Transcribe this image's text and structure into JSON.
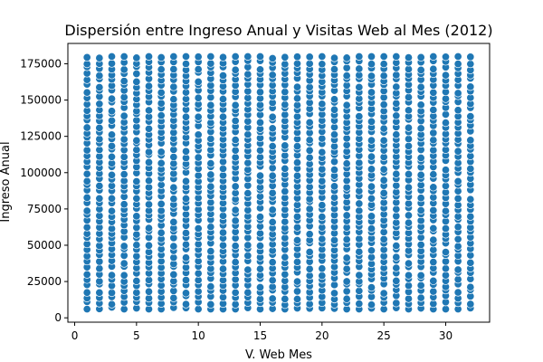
{
  "chart_data": {
    "type": "scatter",
    "title": "Dispersión entre Ingreso Anual y Visitas Web al Mes (2012)",
    "xlabel": "V. Web Mes",
    "ylabel": "Ingreso Anual",
    "xlim": [
      -0.55,
      33.55
    ],
    "ylim": [
      -3000,
      189000
    ],
    "x_ticks": [
      0,
      5,
      10,
      15,
      20,
      25,
      30
    ],
    "x_tick_labels": [
      "0",
      "5",
      "10",
      "15",
      "20",
      "25",
      "30"
    ],
    "y_ticks": [
      0,
      25000,
      50000,
      75000,
      100000,
      125000,
      150000,
      175000
    ],
    "y_tick_labels": [
      "0",
      "25000",
      "50000",
      "75000",
      "100000",
      "125000",
      "150000",
      "175000"
    ],
    "grid": false,
    "legend": "none",
    "point_color": "#1f77b4",
    "point_edge_color": "#ffffff",
    "series": [
      {
        "x": [
          1,
          2,
          3,
          4,
          5,
          6,
          7,
          8,
          9,
          10,
          11,
          12,
          13,
          14,
          15,
          16,
          17,
          18,
          19,
          20,
          21,
          22,
          23,
          24,
          25,
          26,
          27,
          28,
          29,
          30,
          31,
          32
        ],
        "y_min": [
          6000,
          6000,
          6000,
          6000,
          6000,
          6000,
          6000,
          6000,
          6000,
          6000,
          6000,
          6000,
          6000,
          6000,
          6000,
          6000,
          6000,
          6000,
          6000,
          6000,
          6000,
          6000,
          6000,
          6000,
          6000,
          6000,
          6000,
          6000,
          6000,
          6000,
          6000,
          6000
        ],
        "y_max": [
          180000,
          180000,
          180000,
          180000,
          180000,
          180000,
          180000,
          180000,
          180000,
          180000,
          180000,
          180000,
          180000,
          180000,
          180000,
          180000,
          180000,
          180000,
          180000,
          180000,
          180000,
          180000,
          180000,
          180000,
          180000,
          180000,
          180000,
          180000,
          180000,
          180000,
          180000,
          180000
        ]
      }
    ]
  }
}
